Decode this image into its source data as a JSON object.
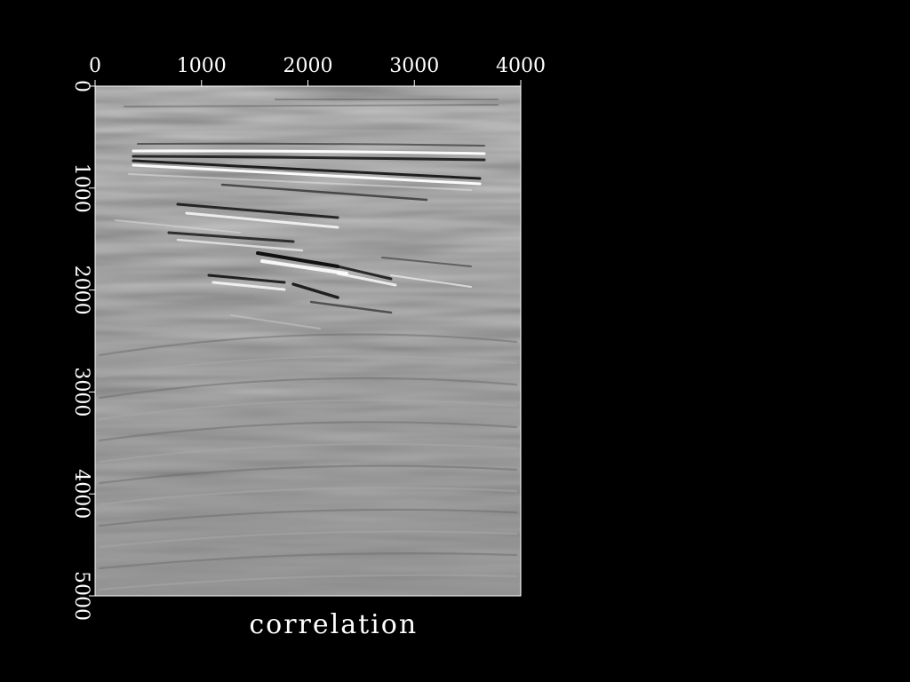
{
  "chart_data": {
    "type": "heatmap",
    "title": "",
    "xlabel": "",
    "ylabel": "",
    "caption": "correlation",
    "xlim": [
      0,
      4000
    ],
    "ylim": [
      0,
      5000
    ],
    "y_inverted": true,
    "x_axis_position": "top",
    "x_ticks": [
      0,
      1000,
      2000,
      3000,
      4000
    ],
    "x_tick_labels": [
      "0",
      "1000",
      "2000",
      "3000",
      "4000"
    ],
    "y_ticks": [
      0,
      1000,
      2000,
      3000,
      4000,
      5000
    ],
    "y_tick_labels": [
      "0",
      "1000",
      "2000",
      "3000",
      "4000",
      "5000"
    ],
    "y_tick_label_rotation": "vertical",
    "colormap": "grayscale",
    "background_value_color": "#8c8c8c",
    "grid": false,
    "legend": "none"
  },
  "colors": {
    "page_background": "#000000",
    "foreground": "#ffffff",
    "neutral_gray": "#8c8c8c"
  }
}
